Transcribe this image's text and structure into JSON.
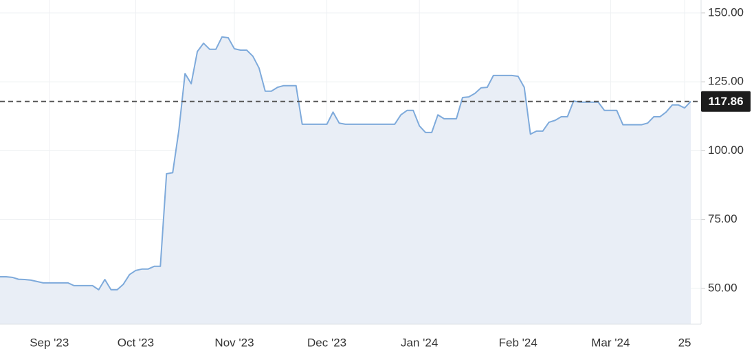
{
  "chart_data": {
    "type": "area",
    "categories": [
      null,
      null,
      null,
      null,
      null,
      null,
      null,
      null,
      "Sep '23",
      null,
      null,
      null,
      null,
      null,
      null,
      null,
      null,
      null,
      null,
      null,
      null,
      null,
      "Oct '23",
      null,
      null,
      null,
      null,
      null,
      null,
      null,
      null,
      null,
      null,
      null,
      null,
      null,
      null,
      null,
      "Nov '23",
      null,
      null,
      null,
      null,
      null,
      null,
      null,
      null,
      null,
      null,
      null,
      null,
      null,
      null,
      "Dec '23",
      null,
      null,
      null,
      null,
      null,
      null,
      null,
      null,
      null,
      null,
      null,
      null,
      null,
      null,
      "Jan '24",
      null,
      null,
      null,
      null,
      null,
      null,
      null,
      null,
      null,
      null,
      null,
      null,
      null,
      null,
      null,
      "Feb '24",
      null,
      null,
      null,
      null,
      null,
      null,
      null,
      null,
      null,
      null,
      null,
      null,
      null,
      null,
      "Mar '24",
      null,
      null,
      null,
      null,
      null,
      null,
      null,
      null,
      null,
      null,
      null,
      "25",
      null
    ],
    "values": [
      54.2,
      54.2,
      54,
      53.3,
      53.2,
      53,
      52.5,
      52,
      52,
      52,
      52,
      52,
      51,
      51,
      51,
      51,
      49.5,
      53.2,
      49.5,
      49.5,
      51.5,
      55,
      56.5,
      57,
      57,
      58,
      58,
      91.6,
      92,
      107.4,
      128,
      124.3,
      136,
      139,
      136.8,
      136.8,
      141.3,
      141,
      137,
      136.5,
      136.5,
      134.3,
      130,
      121.6,
      121.6,
      123,
      123.6,
      123.6,
      123.6,
      109.6,
      109.6,
      109.6,
      109.6,
      109.6,
      114,
      110,
      109.6,
      109.6,
      109.6,
      109.6,
      109.6,
      109.6,
      109.6,
      109.6,
      109.6,
      113,
      114.6,
      114.6,
      109,
      106.6,
      106.6,
      113,
      111.6,
      111.6,
      111.6,
      119.3,
      119.5,
      120.8,
      122.8,
      123,
      127.3,
      127.3,
      127.3,
      127.3,
      127,
      123,
      106,
      107.1,
      107.1,
      110.3,
      111,
      112.3,
      112.3,
      118,
      117.6,
      117.6,
      117.6,
      117.6,
      114.6,
      114.6,
      114.6,
      109.4,
      109.4,
      109.4,
      109.4,
      110,
      112.3,
      112.3,
      114,
      116.6,
      116.6,
      115.5,
      117.86
    ],
    "last_value": 117.86,
    "color": "#7eaadb",
    "fill_color": "#e9eef6",
    "ylim": [
      37,
      154.7
    ],
    "yticks": [
      {
        "value": 50,
        "label": "50.00"
      },
      {
        "value": 75,
        "label": "75.00"
      },
      {
        "value": 100,
        "label": "100.00"
      },
      {
        "value": 125,
        "label": "125.00"
      },
      {
        "value": 150,
        "label": "150.00"
      }
    ],
    "grid": true
  }
}
